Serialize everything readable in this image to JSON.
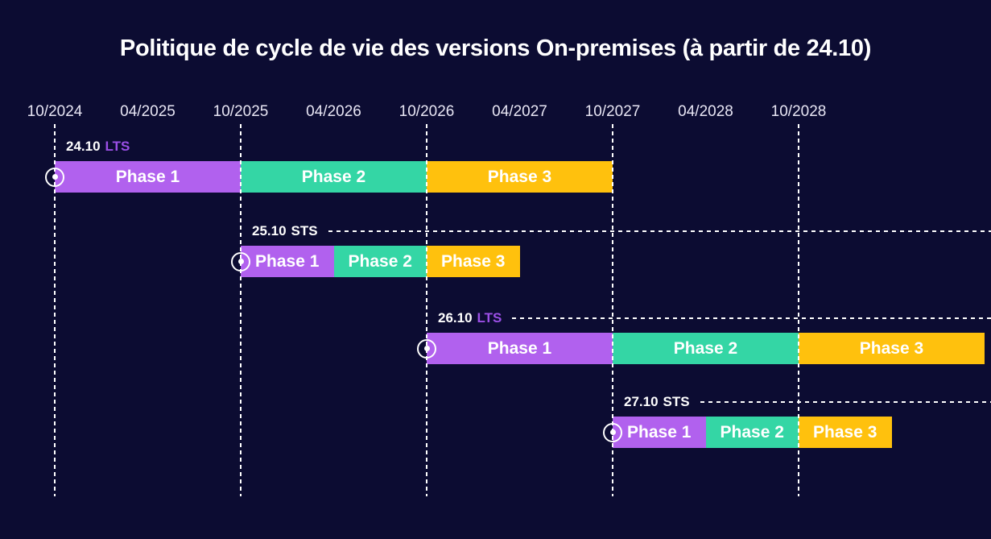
{
  "title": "Politique de cycle de vie des versions On-premises (à partir de 24.10)",
  "colors": {
    "background": "#0c0c32",
    "title_text": "#ffffff",
    "axis_text": "#e8e6f4",
    "dashed_line": "#ffffff",
    "phase1": "#b161ee",
    "phase2": "#34d6a5",
    "phase3": "#ffc10d",
    "support_lts_text": "#9b4fe6",
    "support_sts_text": "#ffffff",
    "marker": "#ffffff"
  },
  "chart_data": {
    "type": "bar",
    "subtype": "gantt-timeline",
    "title": "Politique de cycle de vie des versions On-premises (à partir de 24.10)",
    "x_axis": {
      "tick_labels": [
        "10/2024",
        "04/2025",
        "10/2025",
        "04/2026",
        "10/2026",
        "04/2027",
        "10/2027",
        "04/2028",
        "10/2028"
      ],
      "gridline_dates": [
        "10/2024",
        "10/2025",
        "10/2026",
        "10/2027",
        "10/2028"
      ],
      "tick_interval": "6 months",
      "grid": "vertical-dashed-yearly"
    },
    "legend_position": "none",
    "phase_colors": {
      "Phase 1": "#b161ee",
      "Phase 2": "#34d6a5",
      "Phase 3": "#ffc10d"
    },
    "rows": [
      {
        "version": "24.10",
        "support": "LTS",
        "start_marker": true,
        "trailing_dashed_line": false,
        "phases": [
          {
            "name": "Phase 1",
            "start": "10/2024",
            "end": "10/2025"
          },
          {
            "name": "Phase 2",
            "start": "10/2025",
            "end": "10/2026"
          },
          {
            "name": "Phase 3",
            "start": "10/2026",
            "end": "10/2027"
          }
        ]
      },
      {
        "version": "25.10",
        "support": "STS",
        "start_marker": true,
        "trailing_dashed_line": true,
        "phases": [
          {
            "name": "Phase 1",
            "start": "10/2025",
            "end": "04/2026"
          },
          {
            "name": "Phase 2",
            "start": "04/2026",
            "end": "10/2026"
          },
          {
            "name": "Phase 3",
            "start": "10/2026",
            "end": "04/2027"
          }
        ]
      },
      {
        "version": "26.10",
        "support": "LTS",
        "start_marker": true,
        "trailing_dashed_line": true,
        "phases": [
          {
            "name": "Phase 1",
            "start": "10/2026",
            "end": "10/2027"
          },
          {
            "name": "Phase 2",
            "start": "10/2027",
            "end": "10/2028"
          },
          {
            "name": "Phase 3",
            "start": "10/2028",
            "end": "10/2029"
          }
        ]
      },
      {
        "version": "27.10",
        "support": "STS",
        "start_marker": true,
        "trailing_dashed_line": true,
        "phases": [
          {
            "name": "Phase 1",
            "start": "10/2027",
            "end": "04/2028"
          },
          {
            "name": "Phase 2",
            "start": "04/2028",
            "end": "10/2028"
          },
          {
            "name": "Phase 3",
            "start": "10/2028",
            "end": "04/2029"
          }
        ]
      }
    ]
  }
}
